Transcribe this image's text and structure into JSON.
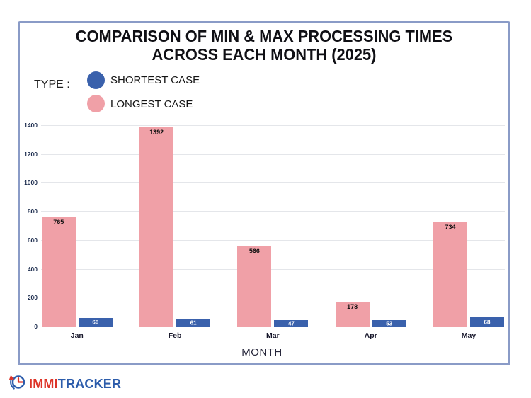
{
  "title": {
    "line1": "COMPARISON OF MIN & MAX PROCESSING TIMES",
    "line2": "ACROSS EACH MONTH (2025)"
  },
  "legend": {
    "label": "TYPE :",
    "items": [
      {
        "label": "SHORTEST CASE",
        "color": "#3a61ac"
      },
      {
        "label": "LONGEST CASE",
        "color": "#f0a0a7"
      }
    ]
  },
  "chart_data": {
    "type": "bar",
    "title": "COMPARISON OF MIN & MAX PROCESSING TIMES ACROSS EACH MONTH (2025)",
    "categories": [
      "Jan",
      "Feb",
      "Mar",
      "Apr",
      "May"
    ],
    "series": [
      {
        "name": "LONGEST CASE",
        "color": "#f0a0a7",
        "values": [
          765,
          1392,
          566,
          178,
          734
        ],
        "value_label_style": "inside-top"
      },
      {
        "name": "SHORTEST CASE",
        "color": "#3a61ac",
        "values": [
          66,
          61,
          47,
          53,
          68
        ],
        "value_label_style": "inside-center"
      }
    ],
    "xlabel": "MONTH",
    "ylabel": "",
    "ylim": [
      0,
      1400
    ],
    "yticks": [
      0,
      200,
      400,
      600,
      800,
      1000,
      1200,
      1400
    ],
    "grid": true,
    "legend_position": "top-left"
  },
  "logo": {
    "brand_red": "IMMI",
    "brand_blue": "TRACKER"
  },
  "colors": {
    "frame_border": "#8a9bc7",
    "gridline": "#e4e6ea",
    "tick_label": "#1b2b4d",
    "longest_bar": "#f0a0a7",
    "shortest_bar": "#3a61ac"
  }
}
